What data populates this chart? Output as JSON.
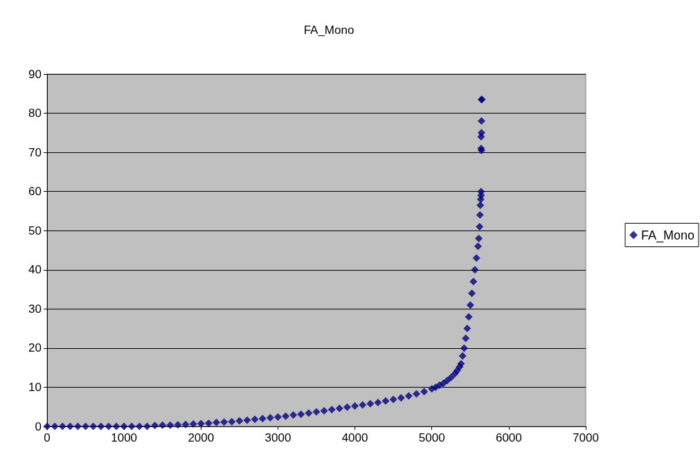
{
  "chart_data": {
    "type": "scatter",
    "title": "FA_Mono",
    "marker": "diamond",
    "grid": "y",
    "legend": "right",
    "xlim": [
      0,
      7000
    ],
    "xticks": [
      0,
      1000,
      2000,
      3000,
      4000,
      5000,
      6000,
      7000
    ],
    "ylim": [
      0,
      90
    ],
    "yticks": [
      0,
      10,
      20,
      30,
      40,
      50,
      60,
      70,
      80,
      90
    ],
    "series": [
      {
        "name": "FA_Mono",
        "color": "#000080",
        "x": [
          0,
          100,
          200,
          300,
          400,
          500,
          600,
          700,
          800,
          900,
          1000,
          1100,
          1200,
          1300,
          1400,
          1500,
          1600,
          1700,
          1800,
          1900,
          2000,
          2100,
          2200,
          2300,
          2400,
          2500,
          2600,
          2700,
          2800,
          2900,
          3000,
          3100,
          3200,
          3300,
          3400,
          3500,
          3600,
          3700,
          3800,
          3900,
          4000,
          4100,
          4200,
          4300,
          4400,
          4500,
          4600,
          4700,
          4800,
          4900,
          5000,
          5050,
          5100,
          5150,
          5200,
          5250,
          5300,
          5330,
          5360,
          5380,
          5400,
          5420,
          5440,
          5460,
          5480,
          5500,
          5520,
          5540,
          5560,
          5580,
          5600,
          5610,
          5620,
          5625,
          5630,
          5635,
          5640,
          5640,
          5645,
          5640,
          5640,
          5645,
          5645,
          5645,
          5650
        ],
        "values": [
          0,
          0,
          0,
          0,
          0,
          0,
          0,
          0,
          0,
          0,
          0,
          0,
          0,
          0,
          0.2,
          0.3,
          0.3,
          0.4,
          0.5,
          0.6,
          0.7,
          0.8,
          1,
          1.1,
          1.2,
          1.4,
          1.6,
          1.8,
          2,
          2.2,
          2.4,
          2.6,
          2.9,
          3.1,
          3.4,
          3.7,
          4,
          4.3,
          4.6,
          4.9,
          5.2,
          5.5,
          5.8,
          6.1,
          6.5,
          6.9,
          7.3,
          7.8,
          8.3,
          8.9,
          9.6,
          10,
          10.5,
          11,
          11.7,
          12.5,
          13.5,
          14.3,
          15.2,
          16,
          18,
          20,
          22.5,
          25,
          28,
          31,
          34,
          37,
          40,
          43,
          46,
          48,
          51,
          54,
          56.5,
          58,
          59,
          60,
          70.5,
          71,
          74,
          75,
          78,
          83.5,
          83.5
        ]
      }
    ]
  }
}
